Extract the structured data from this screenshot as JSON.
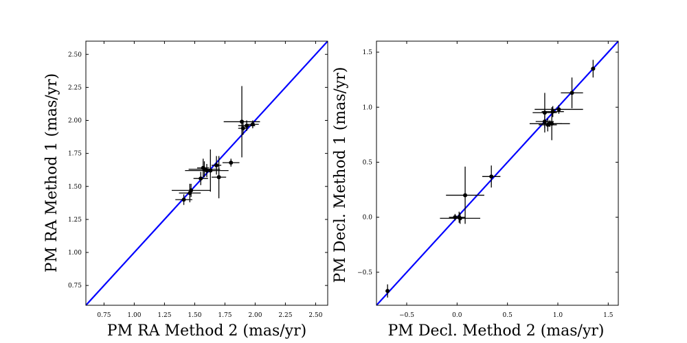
{
  "chart_data": [
    {
      "type": "scatter",
      "title": "",
      "xlabel": "PM RA Method 2 (mas/yr)",
      "ylabel": "PM RA Method 1 (mas/yr)",
      "xlim": [
        0.6,
        2.6
      ],
      "ylim": [
        0.6,
        2.6
      ],
      "xticks": [
        0.75,
        1.0,
        1.25,
        1.5,
        1.75,
        2.0,
        2.25,
        2.5
      ],
      "xtick_labels": [
        "0.75",
        "1.00",
        "1.25",
        "1.50",
        "1.75",
        "2.00",
        "2.25",
        "2.50"
      ],
      "yticks": [
        0.75,
        1.0,
        1.25,
        1.5,
        1.75,
        2.0,
        2.25,
        2.5
      ],
      "ytick_labels": [
        "0.75",
        "1.00",
        "1.25",
        "1.50",
        "1.75",
        "2.00",
        "2.25",
        "2.50"
      ],
      "reference_line": {
        "label": "1:1",
        "color": "#0000ff",
        "from": [
          0.6,
          0.6
        ],
        "to": [
          2.6,
          2.6
        ]
      },
      "point_color": "#000000",
      "points": [
        {
          "x": 1.41,
          "y": 1.4,
          "xerr": 0.07,
          "yerr": 0.04
        },
        {
          "x": 1.46,
          "y": 1.45,
          "xerr": 0.09,
          "yerr": 0.07
        },
        {
          "x": 1.47,
          "y": 1.47,
          "xerr": 0.16,
          "yerr": 0.05
        },
        {
          "x": 1.55,
          "y": 1.56,
          "xerr": 0.06,
          "yerr": 0.05
        },
        {
          "x": 1.57,
          "y": 1.64,
          "xerr": 0.05,
          "yerr": 0.07
        },
        {
          "x": 1.58,
          "y": 1.63,
          "xerr": 0.13,
          "yerr": 0.06
        },
        {
          "x": 1.6,
          "y": 1.62,
          "xerr": 0.18,
          "yerr": 0.05
        },
        {
          "x": 1.63,
          "y": 1.62,
          "xerr": 0.04,
          "yerr": 0.16
        },
        {
          "x": 1.68,
          "y": 1.66,
          "xerr": 0.04,
          "yerr": 0.07
        },
        {
          "x": 1.7,
          "y": 1.57,
          "xerr": 0.06,
          "yerr": 0.16
        },
        {
          "x": 1.8,
          "y": 1.68,
          "xerr": 0.07,
          "yerr": 0.03
        },
        {
          "x": 1.89,
          "y": 1.99,
          "xerr": 0.15,
          "yerr": 0.27
        },
        {
          "x": 1.9,
          "y": 1.94,
          "xerr": 0.04,
          "yerr": 0.05
        },
        {
          "x": 1.93,
          "y": 1.96,
          "xerr": 0.07,
          "yerr": 0.04
        },
        {
          "x": 1.98,
          "y": 1.97,
          "xerr": 0.05,
          "yerr": 0.03
        }
      ]
    },
    {
      "type": "scatter",
      "title": "",
      "xlabel": "PM Decl. Method 2 (mas/yr)",
      "ylabel": "PM Decl. Method 1 (mas/yr)",
      "xlim": [
        -0.8,
        1.6
      ],
      "ylim": [
        -0.8,
        1.6
      ],
      "xticks": [
        -0.5,
        0.0,
        0.5,
        1.0,
        1.5
      ],
      "xtick_labels": [
        "−0.5",
        "0.0",
        "0.5",
        "1.0",
        "1.5"
      ],
      "yticks": [
        -0.5,
        0.0,
        0.5,
        1.0,
        1.5
      ],
      "ytick_labels": [
        "−0.5",
        "0.0",
        "0.5",
        "1.0",
        "1.5"
      ],
      "reference_line": {
        "label": "1:1",
        "color": "#0000ff",
        "from": [
          -0.8,
          -0.8
        ],
        "to": [
          1.6,
          1.6
        ]
      },
      "point_color": "#000000",
      "points": [
        {
          "x": -0.69,
          "y": -0.67,
          "xerr": 0.02,
          "yerr": 0.06
        },
        {
          "x": -0.02,
          "y": 0.0,
          "xerr": 0.06,
          "yerr": 0.03
        },
        {
          "x": 0.02,
          "y": 0.0,
          "xerr": 0.06,
          "yerr": 0.05
        },
        {
          "x": 0.03,
          "y": -0.01,
          "xerr": 0.2,
          "yerr": 0.05
        },
        {
          "x": 0.08,
          "y": 0.2,
          "xerr": 0.19,
          "yerr": 0.26
        },
        {
          "x": 0.34,
          "y": 0.37,
          "xerr": 0.09,
          "yerr": 0.1
        },
        {
          "x": 0.87,
          "y": 0.87,
          "xerr": 0.09,
          "yerr": 0.06
        },
        {
          "x": 0.87,
          "y": 0.95,
          "xerr": 0.12,
          "yerr": 0.18
        },
        {
          "x": 0.9,
          "y": 0.84,
          "xerr": 0.09,
          "yerr": 0.06
        },
        {
          "x": 0.92,
          "y": 0.85,
          "xerr": 0.2,
          "yerr": 0.03
        },
        {
          "x": 0.94,
          "y": 0.85,
          "xerr": 0.1,
          "yerr": 0.15
        },
        {
          "x": 0.95,
          "y": 0.96,
          "xerr": 0.11,
          "yerr": 0.05
        },
        {
          "x": 1.01,
          "y": 0.98,
          "xerr": 0.24,
          "yerr": 0.04
        },
        {
          "x": 1.14,
          "y": 1.13,
          "xerr": 0.11,
          "yerr": 0.14
        },
        {
          "x": 1.35,
          "y": 1.35,
          "xerr": 0.02,
          "yerr": 0.08
        }
      ]
    }
  ]
}
